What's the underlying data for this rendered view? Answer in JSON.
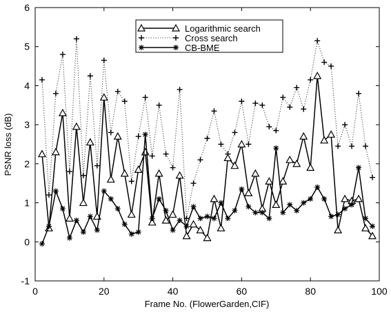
{
  "chart_data": {
    "type": "line",
    "xlabel": "Frame No. (FlowerGarden,CIF)",
    "ylabel": "PSNR loss (dB)",
    "xlim": [
      0,
      100
    ],
    "ylim": [
      -1,
      6
    ],
    "xticks": [
      0,
      20,
      40,
      60,
      80,
      100
    ],
    "yticks": [
      -1,
      0,
      1,
      2,
      3,
      4,
      5,
      6
    ],
    "grid": false,
    "legend_position": "top-center",
    "series": [
      {
        "name": "Logarithmic search",
        "style": "solid",
        "marker": "triangle",
        "x": [
          2,
          4,
          6,
          8,
          10,
          12,
          14,
          16,
          18,
          20,
          22,
          24,
          26,
          28,
          30,
          32,
          34,
          36,
          38,
          40,
          42,
          44,
          46,
          48,
          50,
          52,
          54,
          56,
          58,
          60,
          62,
          64,
          66,
          68,
          70,
          72,
          74,
          76,
          78,
          80,
          82,
          84,
          86,
          88,
          90,
          92,
          94,
          96,
          98
        ],
        "y": [
          2.25,
          0.35,
          2.3,
          3.3,
          0.6,
          2.95,
          1.0,
          2.55,
          0.65,
          3.7,
          1.6,
          2.7,
          1.75,
          0.7,
          1.85,
          2.3,
          0.5,
          1.75,
          0.55,
          0.7,
          1.7,
          0.15,
          0.45,
          0.3,
          0.1,
          1.1,
          0.35,
          2.15,
          1.95,
          2.5,
          1.25,
          1.75,
          0.85,
          1.55,
          0.95,
          1.55,
          2.1,
          2.0,
          2.7,
          1.9,
          4.25,
          2.6,
          2.75,
          0.3,
          1.1,
          1.05,
          1.1,
          0.35,
          0.15
        ]
      },
      {
        "name": "Cross search",
        "style": "dotted",
        "marker": "plus",
        "x": [
          2,
          4,
          6,
          8,
          10,
          12,
          14,
          16,
          18,
          20,
          22,
          24,
          26,
          28,
          30,
          32,
          34,
          36,
          38,
          40,
          42,
          44,
          46,
          48,
          50,
          52,
          54,
          56,
          58,
          60,
          62,
          64,
          66,
          68,
          70,
          72,
          74,
          76,
          78,
          80,
          82,
          84,
          86,
          88,
          90,
          92,
          94,
          96,
          98
        ],
        "y": [
          4.15,
          1.2,
          3.8,
          4.8,
          1.8,
          5.2,
          1.7,
          4.25,
          1.95,
          4.65,
          2.8,
          3.85,
          3.6,
          1.55,
          2.7,
          3.7,
          2.2,
          3.5,
          2.25,
          1.9,
          3.9,
          0.6,
          1.5,
          2.1,
          2.65,
          3.35,
          2.5,
          2.25,
          2.8,
          3.6,
          2.5,
          3.55,
          3.5,
          2.95,
          2.85,
          3.7,
          3.45,
          3.95,
          3.4,
          4.15,
          5.15,
          4.6,
          4.5,
          2.45,
          3.0,
          2.45,
          3.8,
          2.45,
          1.65
        ]
      },
      {
        "name": "CB-BME",
        "style": "solid",
        "marker": "star",
        "x": [
          2,
          4,
          6,
          8,
          10,
          12,
          14,
          16,
          18,
          20,
          22,
          24,
          26,
          28,
          30,
          32,
          34,
          36,
          38,
          40,
          42,
          44,
          46,
          48,
          50,
          52,
          54,
          56,
          58,
          60,
          62,
          64,
          66,
          68,
          70,
          72,
          74,
          76,
          78,
          80,
          82,
          84,
          86,
          88,
          90,
          92,
          94,
          96,
          98
        ],
        "y": [
          -0.05,
          0.4,
          1.3,
          0.85,
          0.1,
          0.55,
          0.25,
          0.65,
          0.3,
          1.3,
          1.1,
          0.85,
          0.45,
          0.2,
          0.25,
          2.75,
          0.6,
          1.1,
          0.8,
          0.3,
          0.55,
          0.4,
          0.9,
          0.6,
          0.65,
          0.6,
          1.0,
          0.6,
          0.8,
          1.35,
          0.9,
          0.75,
          0.75,
          0.6,
          2.4,
          0.75,
          0.95,
          0.8,
          1.0,
          1.1,
          1.4,
          1.1,
          0.65,
          0.7,
          0.85,
          0.95,
          1.9,
          0.6,
          0.4
        ]
      }
    ]
  }
}
